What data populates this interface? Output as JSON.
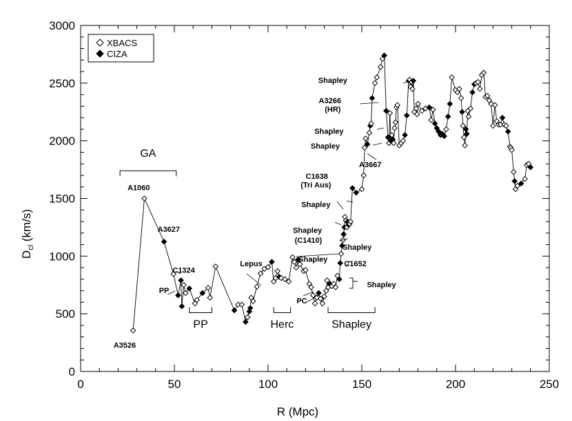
{
  "chart_data": {
    "type": "scatter",
    "xlabel": "R (Mpc)",
    "ylabel": "D",
    "ylabel_sub": "cl",
    "ylabel_unit": " (km/s)",
    "xlim": [
      0,
      250
    ],
    "ylim": [
      0,
      3000
    ],
    "xticks": [
      0,
      50,
      100,
      150,
      200,
      250
    ],
    "yticks": [
      0,
      500,
      1000,
      1500,
      2000,
      2500,
      3000
    ],
    "legend": {
      "placement": "top-left",
      "entries": [
        {
          "label": "XBACS",
          "marker": "open-diamond"
        },
        {
          "label": "CIZA",
          "marker": "filled-diamond"
        }
      ]
    },
    "series": [
      {
        "name": "combined",
        "connected": true,
        "points": [
          {
            "x": 28,
            "y": 355,
            "s": "X"
          },
          {
            "x": 34,
            "y": 1500,
            "s": "X"
          },
          {
            "x": 44.5,
            "y": 1125,
            "s": "C"
          },
          {
            "x": 49.5,
            "y": 845,
            "s": "X"
          },
          {
            "x": 52,
            "y": 660,
            "s": "C"
          },
          {
            "x": 53.5,
            "y": 790,
            "s": "C"
          },
          {
            "x": 54,
            "y": 565,
            "s": "C"
          },
          {
            "x": 55,
            "y": 750,
            "s": "X"
          },
          {
            "x": 56,
            "y": 680,
            "s": "X"
          },
          {
            "x": 58,
            "y": 720,
            "s": "C"
          },
          {
            "x": 61,
            "y": 590,
            "s": "X"
          },
          {
            "x": 62,
            "y": 620,
            "s": "X"
          },
          {
            "x": 65,
            "y": 680,
            "s": "C"
          },
          {
            "x": 68,
            "y": 725,
            "s": "X"
          },
          {
            "x": 69,
            "y": 640,
            "s": "X"
          },
          {
            "x": 72,
            "y": 910,
            "s": "X"
          },
          {
            "x": 82,
            "y": 530,
            "s": "C"
          },
          {
            "x": 84,
            "y": 580,
            "s": "X"
          },
          {
            "x": 86,
            "y": 580,
            "s": "X"
          },
          {
            "x": 88,
            "y": 430,
            "s": "C"
          },
          {
            "x": 89,
            "y": 470,
            "s": "X"
          },
          {
            "x": 90,
            "y": 520,
            "s": "C"
          },
          {
            "x": 90.5,
            "y": 550,
            "s": "C"
          },
          {
            "x": 91,
            "y": 640,
            "s": "X"
          },
          {
            "x": 92,
            "y": 610,
            "s": "X"
          },
          {
            "x": 94,
            "y": 735,
            "s": "X"
          },
          {
            "x": 96,
            "y": 850,
            "s": "X"
          },
          {
            "x": 98,
            "y": 890,
            "s": "X"
          },
          {
            "x": 100,
            "y": 905,
            "s": "X"
          },
          {
            "x": 102,
            "y": 950,
            "s": "C"
          },
          {
            "x": 103,
            "y": 780,
            "s": "X"
          },
          {
            "x": 104,
            "y": 810,
            "s": "X"
          },
          {
            "x": 105,
            "y": 870,
            "s": "X"
          },
          {
            "x": 106,
            "y": 820,
            "s": "C"
          },
          {
            "x": 107,
            "y": 810,
            "s": "X"
          },
          {
            "x": 109,
            "y": 800,
            "s": "X"
          },
          {
            "x": 111,
            "y": 780,
            "s": "X"
          },
          {
            "x": 113,
            "y": 990,
            "s": "X"
          },
          {
            "x": 114,
            "y": 950,
            "s": "X"
          },
          {
            "x": 115,
            "y": 900,
            "s": "X"
          },
          {
            "x": 116,
            "y": 970,
            "s": "C"
          },
          {
            "x": 117,
            "y": 930,
            "s": "X"
          },
          {
            "x": 119,
            "y": 870,
            "s": "X"
          },
          {
            "x": 120,
            "y": 880,
            "s": "X"
          },
          {
            "x": 122,
            "y": 760,
            "s": "X"
          },
          {
            "x": 123,
            "y": 730,
            "s": "X"
          },
          {
            "x": 124,
            "y": 660,
            "s": "X"
          },
          {
            "x": 125,
            "y": 590,
            "s": "X"
          },
          {
            "x": 126,
            "y": 640,
            "s": "X"
          },
          {
            "x": 127,
            "y": 680,
            "s": "C"
          },
          {
            "x": 128,
            "y": 630,
            "s": "X"
          },
          {
            "x": 129,
            "y": 590,
            "s": "X"
          },
          {
            "x": 130,
            "y": 650,
            "s": "X"
          },
          {
            "x": 131,
            "y": 700,
            "s": "X"
          },
          {
            "x": 131.5,
            "y": 790,
            "s": "X"
          },
          {
            "x": 132,
            "y": 730,
            "s": "X"
          },
          {
            "x": 133,
            "y": 760,
            "s": "C"
          },
          {
            "x": 134,
            "y": 740,
            "s": "X"
          },
          {
            "x": 135,
            "y": 760,
            "s": "X"
          },
          {
            "x": 136,
            "y": 730,
            "s": "X"
          },
          {
            "x": 137,
            "y": 830,
            "s": "X"
          },
          {
            "x": 138,
            "y": 800,
            "s": "C"
          },
          {
            "x": 138.5,
            "y": 940,
            "s": "C"
          },
          {
            "x": 139,
            "y": 1020,
            "s": "X"
          },
          {
            "x": 139.5,
            "y": 1090,
            "s": "C"
          },
          {
            "x": 140,
            "y": 1140,
            "s": "X"
          },
          {
            "x": 140.3,
            "y": 1190,
            "s": "C"
          },
          {
            "x": 140.7,
            "y": 1250,
            "s": "C"
          },
          {
            "x": 141,
            "y": 1340,
            "s": "X"
          },
          {
            "x": 141.5,
            "y": 1310,
            "s": "X"
          },
          {
            "x": 142,
            "y": 1250,
            "s": "X"
          },
          {
            "x": 142.5,
            "y": 1300,
            "s": "C"
          },
          {
            "x": 143,
            "y": 1270,
            "s": "C"
          },
          {
            "x": 143.5,
            "y": 1280,
            "s": "X"
          },
          {
            "x": 144,
            "y": 1300,
            "s": "X"
          },
          {
            "x": 145,
            "y": 1590,
            "s": "C"
          },
          {
            "x": 147,
            "y": 1550,
            "s": "C"
          },
          {
            "x": 150,
            "y": 1580,
            "s": "X"
          },
          {
            "x": 151,
            "y": 1700,
            "s": "X"
          },
          {
            "x": 151.5,
            "y": 1940,
            "s": "X"
          },
          {
            "x": 152,
            "y": 2020,
            "s": "X"
          },
          {
            "x": 153,
            "y": 1970,
            "s": "C"
          },
          {
            "x": 154,
            "y": 2070,
            "s": "X"
          },
          {
            "x": 154.5,
            "y": 2130,
            "s": "C"
          },
          {
            "x": 155,
            "y": 2150,
            "s": "X"
          },
          {
            "x": 155.5,
            "y": 2370,
            "s": "C"
          },
          {
            "x": 157,
            "y": 2500,
            "s": "X"
          },
          {
            "x": 158,
            "y": 2550,
            "s": "X"
          },
          {
            "x": 160,
            "y": 2640,
            "s": "X"
          },
          {
            "x": 161,
            "y": 2710,
            "s": "X"
          },
          {
            "x": 162,
            "y": 2740,
            "s": "C"
          },
          {
            "x": 163,
            "y": 2260,
            "s": "C"
          },
          {
            "x": 164,
            "y": 2030,
            "s": "C"
          },
          {
            "x": 164.5,
            "y": 1980,
            "s": "X"
          },
          {
            "x": 165,
            "y": 2240,
            "s": "X"
          },
          {
            "x": 165.5,
            "y": 2000,
            "s": "C"
          },
          {
            "x": 166,
            "y": 2050,
            "s": "X"
          },
          {
            "x": 166.5,
            "y": 2010,
            "s": "C"
          },
          {
            "x": 167,
            "y": 1980,
            "s": "X"
          },
          {
            "x": 167.5,
            "y": 2110,
            "s": "X"
          },
          {
            "x": 168,
            "y": 2160,
            "s": "X"
          },
          {
            "x": 168.5,
            "y": 2290,
            "s": "X"
          },
          {
            "x": 169,
            "y": 2310,
            "s": "X"
          },
          {
            "x": 170,
            "y": 1960,
            "s": "X"
          },
          {
            "x": 171,
            "y": 1980,
            "s": "X"
          },
          {
            "x": 172,
            "y": 2000,
            "s": "X"
          },
          {
            "x": 173,
            "y": 2050,
            "s": "C"
          },
          {
            "x": 174,
            "y": 2220,
            "s": "C"
          },
          {
            "x": 175,
            "y": 2520,
            "s": "C"
          },
          {
            "x": 175.5,
            "y": 2530,
            "s": "X"
          },
          {
            "x": 176,
            "y": 2470,
            "s": "X"
          },
          {
            "x": 176.5,
            "y": 2510,
            "s": "X"
          },
          {
            "x": 177,
            "y": 2450,
            "s": "X"
          },
          {
            "x": 177.5,
            "y": 2520,
            "s": "C"
          },
          {
            "x": 178,
            "y": 2250,
            "s": "X"
          },
          {
            "x": 179,
            "y": 2280,
            "s": "X"
          },
          {
            "x": 179.5,
            "y": 2230,
            "s": "X"
          },
          {
            "x": 180,
            "y": 2320,
            "s": "X"
          },
          {
            "x": 182,
            "y": 2260,
            "s": "X"
          },
          {
            "x": 184,
            "y": 2280,
            "s": "X"
          },
          {
            "x": 186,
            "y": 2290,
            "s": "C"
          },
          {
            "x": 187,
            "y": 2180,
            "s": "X"
          },
          {
            "x": 188,
            "y": 2270,
            "s": "X"
          },
          {
            "x": 189,
            "y": 2150,
            "s": "C"
          },
          {
            "x": 190,
            "y": 2110,
            "s": "C"
          },
          {
            "x": 191,
            "y": 2080,
            "s": "C"
          },
          {
            "x": 192,
            "y": 2050,
            "s": "C"
          },
          {
            "x": 193,
            "y": 2060,
            "s": "C"
          },
          {
            "x": 194,
            "y": 2040,
            "s": "C"
          },
          {
            "x": 195,
            "y": 2100,
            "s": "X"
          },
          {
            "x": 196,
            "y": 2210,
            "s": "C"
          },
          {
            "x": 197,
            "y": 2320,
            "s": "C"
          },
          {
            "x": 198,
            "y": 2550,
            "s": "X"
          },
          {
            "x": 200,
            "y": 2440,
            "s": "X"
          },
          {
            "x": 201,
            "y": 2420,
            "s": "X"
          },
          {
            "x": 202,
            "y": 2450,
            "s": "X"
          },
          {
            "x": 203,
            "y": 2370,
            "s": "X"
          },
          {
            "x": 203.5,
            "y": 2250,
            "s": "C"
          },
          {
            "x": 204,
            "y": 2130,
            "s": "X"
          },
          {
            "x": 204.5,
            "y": 2030,
            "s": "X"
          },
          {
            "x": 205,
            "y": 1960,
            "s": "X"
          },
          {
            "x": 205.5,
            "y": 2100,
            "s": "C"
          },
          {
            "x": 206,
            "y": 2060,
            "s": "C"
          },
          {
            "x": 206.5,
            "y": 2260,
            "s": "X"
          },
          {
            "x": 207,
            "y": 2210,
            "s": "X"
          },
          {
            "x": 208,
            "y": 2280,
            "s": "X"
          },
          {
            "x": 209,
            "y": 2420,
            "s": "C"
          },
          {
            "x": 210,
            "y": 2490,
            "s": "C"
          },
          {
            "x": 211,
            "y": 2500,
            "s": "X"
          },
          {
            "x": 212,
            "y": 2510,
            "s": "X"
          },
          {
            "x": 213,
            "y": 2450,
            "s": "X"
          },
          {
            "x": 214,
            "y": 2570,
            "s": "X"
          },
          {
            "x": 215,
            "y": 2590,
            "s": "X"
          },
          {
            "x": 216,
            "y": 2380,
            "s": "X"
          },
          {
            "x": 217,
            "y": 2390,
            "s": "X"
          },
          {
            "x": 218,
            "y": 2350,
            "s": "X"
          },
          {
            "x": 219,
            "y": 2320,
            "s": "X"
          },
          {
            "x": 220,
            "y": 2130,
            "s": "X"
          },
          {
            "x": 221,
            "y": 2310,
            "s": "X"
          },
          {
            "x": 222,
            "y": 2170,
            "s": "X"
          },
          {
            "x": 223,
            "y": 2140,
            "s": "X"
          },
          {
            "x": 224,
            "y": 2140,
            "s": "X"
          },
          {
            "x": 225,
            "y": 2200,
            "s": "C"
          },
          {
            "x": 226,
            "y": 2140,
            "s": "X"
          },
          {
            "x": 227,
            "y": 2130,
            "s": "X"
          },
          {
            "x": 228,
            "y": 2080,
            "s": "C"
          },
          {
            "x": 229,
            "y": 1950,
            "s": "X"
          },
          {
            "x": 229.5,
            "y": 1940,
            "s": "X"
          },
          {
            "x": 230,
            "y": 1920,
            "s": "X"
          },
          {
            "x": 231,
            "y": 1730,
            "s": "X"
          },
          {
            "x": 231.5,
            "y": 1650,
            "s": "C"
          },
          {
            "x": 232,
            "y": 1580,
            "s": "X"
          },
          {
            "x": 233,
            "y": 1610,
            "s": "X"
          },
          {
            "x": 235,
            "y": 1630,
            "s": "C"
          },
          {
            "x": 237,
            "y": 1670,
            "s": "X"
          },
          {
            "x": 238,
            "y": 1790,
            "s": "X"
          },
          {
            "x": 239,
            "y": 1800,
            "s": "X"
          },
          {
            "x": 240,
            "y": 1770,
            "s": "C"
          }
        ]
      }
    ],
    "annotations": [
      {
        "text": "A3526",
        "ax": 23.5,
        "ay": 230
      },
      {
        "text": "A1060",
        "ax": 31,
        "ay": 1595
      },
      {
        "text": "A3627",
        "ax": 47,
        "ay": 1235
      },
      {
        "text": "C1324",
        "ax": 55,
        "ay": 880
      },
      {
        "text": "PP",
        "ax": 44.5,
        "ay": 705
      },
      {
        "text": "Lepus",
        "ax": 91,
        "ay": 935
      },
      {
        "text": "Shapley",
        "ax": 134.5,
        "ay": 2525
      },
      {
        "text": "A3266",
        "ax": 133,
        "ay": 2350
      },
      {
        "text": "(HR)",
        "ax": 134.5,
        "ay": 2275
      },
      {
        "text": "Shapley",
        "ax": 132.5,
        "ay": 2085
      },
      {
        "text": "Shapley",
        "ax": 130.5,
        "ay": 1955
      },
      {
        "text": "A3667",
        "ax": 154.5,
        "ay": 1795
      },
      {
        "text": "C1638",
        "ax": 126,
        "ay": 1695
      },
      {
        "text": "(Tri Aus)",
        "ax": 125.5,
        "ay": 1620
      },
      {
        "text": "Shapley",
        "ax": 125.5,
        "ay": 1450
      },
      {
        "text": "Shapley",
        "ax": 121,
        "ay": 1225
      },
      {
        "text": "(C1410)",
        "ax": 121.5,
        "ay": 1140
      },
      {
        "text": "Shapley",
        "ax": 147.5,
        "ay": 1080
      },
      {
        "text": "Shapley",
        "ax": 124,
        "ay": 975
      },
      {
        "text": "C1652",
        "ax": 146.5,
        "ay": 935
      },
      {
        "text": "Shapley",
        "ax": 160.5,
        "ay": 755
      },
      {
        "text": "PC",
        "ax": 118,
        "ay": 615
      }
    ],
    "groups": [
      {
        "label": "GA",
        "x0": 21,
        "x1": 51,
        "y_bracket": 1740,
        "y_label": 1860
      },
      {
        "label": "PP",
        "x0": 58,
        "x1": 70,
        "y_bracket": 510,
        "y_label": 380
      },
      {
        "label": "Herc",
        "x0": 103,
        "x1": 112,
        "y_bracket": 510,
        "y_label": 380
      },
      {
        "label": "Shapley",
        "x0": 132,
        "x1": 157,
        "y_bracket": 510,
        "y_label": 380
      }
    ]
  }
}
